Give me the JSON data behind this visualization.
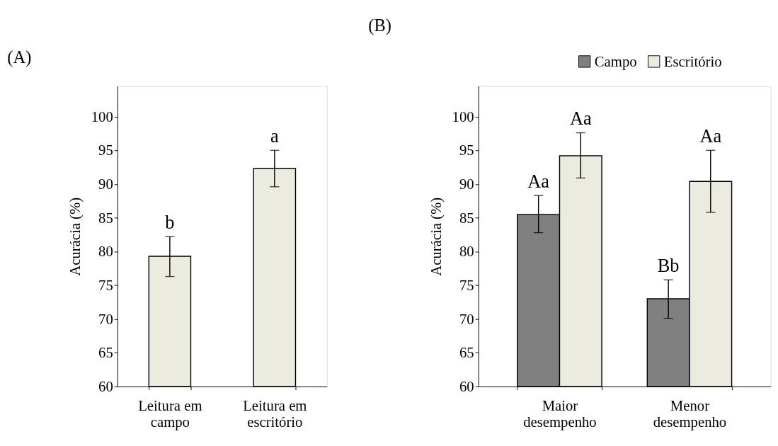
{
  "chart_data": [
    {
      "type": "bar",
      "title": "(A)",
      "ylabel": "Acurácia (%)",
      "categories": [
        "Leitura em campo",
        "Leitura em escritório"
      ],
      "values": [
        79.3,
        92.3
      ],
      "color": "#ecebe0",
      "errors": [
        [
          76.3,
          82.2
        ],
        [
          89.6,
          95.0
        ]
      ],
      "ylim": [
        60,
        104.5
      ],
      "yticks": [
        60,
        65,
        70,
        75,
        80,
        85,
        90,
        95,
        100
      ],
      "grid": false,
      "annotations": [
        "b",
        "a"
      ]
    },
    {
      "type": "bar",
      "title": "(B)",
      "ylabel": "Acurácia (%)",
      "categories": [
        "Maior desempenho",
        "Menor desempenho"
      ],
      "series": [
        {
          "name": "Campo",
          "color": "#808080",
          "values": [
            85.5,
            73.0
          ],
          "errors": [
            [
              82.8,
              88.3
            ],
            [
              70.1,
              75.8
            ]
          ]
        },
        {
          "name": "Escritório",
          "color": "#ecebe0",
          "values": [
            94.2,
            90.4
          ],
          "errors": [
            [
              90.9,
              97.6
            ],
            [
              85.8,
              95.0
            ]
          ]
        }
      ],
      "ylim": [
        60,
        104.5
      ],
      "yticks": [
        60,
        65,
        70,
        75,
        80,
        85,
        90,
        95,
        100
      ],
      "grid": false,
      "legend": "top right",
      "annotations": [
        "Aa",
        "Aa",
        "Bb",
        "Aa"
      ]
    }
  ]
}
